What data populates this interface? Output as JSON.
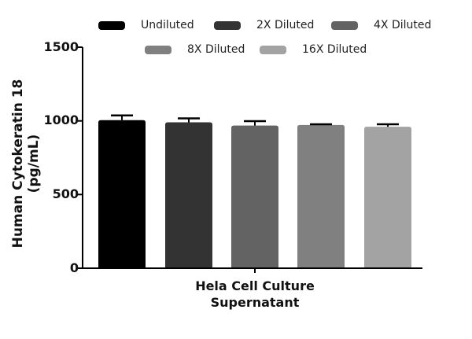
{
  "chart_data": {
    "type": "bar",
    "title": "",
    "xlabel": "Hela Cell Culture Supernatant",
    "xlabel_lines": [
      "Hela Cell Culture",
      "Supernatant"
    ],
    "ylabel": "Human Cytokeratin 18 (pg/mL)",
    "ylim": [
      0,
      1500
    ],
    "yticks": [
      0,
      500,
      1000,
      1500
    ],
    "grid": false,
    "legend_position": "top",
    "categories": [
      "Hela Cell Culture Supernatant"
    ],
    "series": [
      {
        "name": "Undiluted",
        "values": [
          1005
        ],
        "error": [
          32
        ],
        "color": "#000000"
      },
      {
        "name": "2X Diluted",
        "values": [
          990
        ],
        "error": [
          27
        ],
        "color": "#333333"
      },
      {
        "name": "4X Diluted",
        "values": [
          968
        ],
        "error": [
          30
        ],
        "color": "#636363"
      },
      {
        "name": "8X Diluted",
        "values": [
          972
        ],
        "error": [
          5
        ],
        "color": "#808080"
      },
      {
        "name": "16X Diluted",
        "values": [
          960
        ],
        "error": [
          17
        ],
        "color": "#a3a3a3"
      }
    ]
  }
}
